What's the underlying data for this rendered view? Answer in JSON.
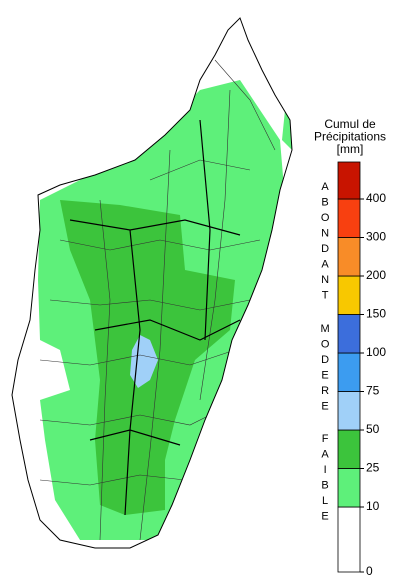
{
  "legend": {
    "title": [
      "Cumul de",
      "Précipitations",
      "[mm]"
    ],
    "ticks": [
      0,
      10,
      25,
      50,
      75,
      100,
      150,
      200,
      300,
      400
    ],
    "colors": [
      "#ffffff",
      "#5ef07a",
      "#3cc43c",
      "#a0d0f8",
      "#3c9cf0",
      "#3c6edc",
      "#f8c800",
      "#f88c28",
      "#f84010",
      "#c81400"
    ],
    "groups": [
      "ABONDANT",
      "MODERE",
      "FAIBLE"
    ]
  }
}
